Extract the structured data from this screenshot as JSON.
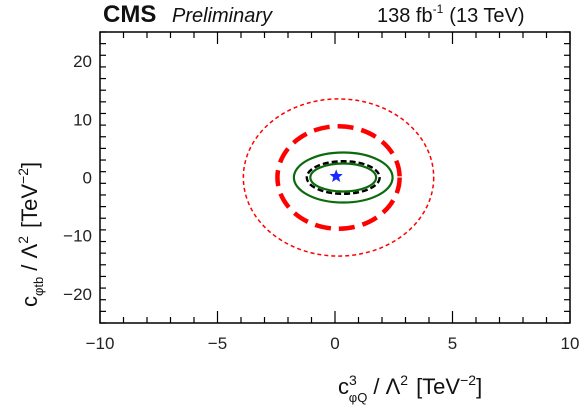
{
  "chart_data": {
    "type": "contour",
    "header": {
      "experiment": "CMS",
      "status": "Preliminary",
      "lumi": "138 fb",
      "lumi_exp": "-1",
      "energy": "(13 TeV)"
    },
    "xlabel": {
      "coef": "c",
      "sup": "3",
      "sub": "φQ",
      "scale": "/ Λ",
      "scale_sup": "2",
      "unit": "[TeV",
      "unit_sup": "−2",
      "unit_close": "]"
    },
    "ylabel": {
      "coef": "c",
      "sub": "φtb",
      "scale": "/ Λ",
      "scale_sup": "2",
      "unit": "[TeV",
      "unit_sup": "−2",
      "unit_close": "]"
    },
    "xlim": [
      -10,
      10
    ],
    "ylim": [
      -25,
      25
    ],
    "xticks": [
      -10,
      -5,
      0,
      5,
      10
    ],
    "xtick_labels": [
      "−10",
      "−5",
      "0",
      "5",
      "10"
    ],
    "yticks": [
      -20,
      -10,
      0,
      10,
      20
    ],
    "ytick_labels": [
      "−20",
      "−10",
      "0",
      "10",
      "20"
    ],
    "grid": false,
    "contours": [
      {
        "id": "red-outer",
        "color": "#ff0000",
        "style": "dashed-thin",
        "cx": 0.15,
        "cy": 0.0,
        "rx": 4.05,
        "ry": 13.5
      },
      {
        "id": "red-inner",
        "color": "#ff0000",
        "style": "dashed-thick",
        "cx": 0.15,
        "cy": 0.0,
        "rx": 2.6,
        "ry": 8.8
      },
      {
        "id": "green-outer",
        "color": "#0b6b0b",
        "style": "solid",
        "cx": 0.35,
        "cy": 0.0,
        "rx": 2.1,
        "ry": 4.3
      },
      {
        "id": "green-inner",
        "color": "#0b6b0b",
        "style": "solid",
        "cx": 0.35,
        "cy": 0.0,
        "rx": 1.4,
        "ry": 2.4
      },
      {
        "id": "black-dashed",
        "color": "#000000",
        "style": "dashed",
        "cx": 0.35,
        "cy": 0.0,
        "rx": 1.55,
        "ry": 2.8
      }
    ],
    "best_fit": {
      "x": 0.05,
      "y": 0.2,
      "color": "#1a2bff",
      "marker": "star"
    }
  }
}
